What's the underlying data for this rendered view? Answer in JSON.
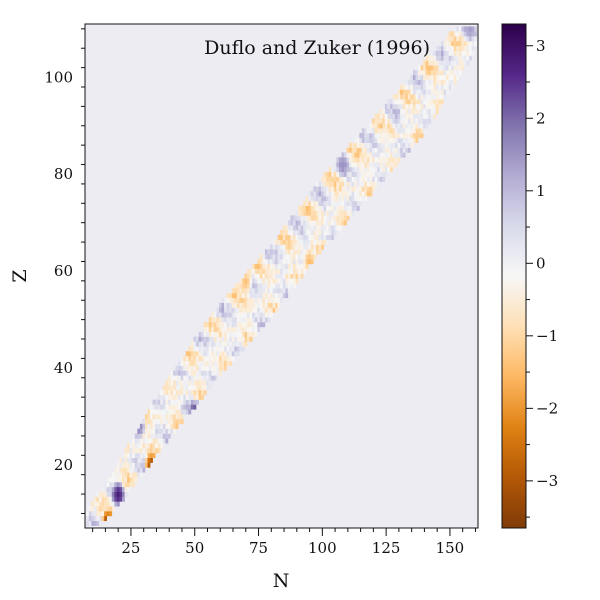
{
  "chart_data": {
    "type": "heatmap",
    "annotation": "Duflo and Zuker (1996)",
    "xlabel": "N",
    "ylabel": "Z",
    "xlim": [
      7,
      161
    ],
    "ylim": [
      7,
      111
    ],
    "xticks": [
      25,
      50,
      75,
      100,
      125,
      150
    ],
    "yticks": [
      20,
      40,
      60,
      80,
      100
    ],
    "colorbar": {
      "min": -3.65,
      "max": 3.3,
      "ticks": [
        3,
        2,
        1,
        0,
        -1,
        -2,
        -3
      ],
      "tick_labels": [
        "3",
        "2",
        "1",
        "0",
        "−1",
        "−2",
        "−3"
      ],
      "colormap": "PuOr",
      "colors_low_to_high": [
        "#7f3b08",
        "#b35806",
        "#e08214",
        "#fdb863",
        "#fee0b6",
        "#f7f7f7",
        "#d8daeb",
        "#b2abd2",
        "#8073ac",
        "#542788",
        "#2d004b"
      ]
    },
    "background_color": "#edecf2",
    "band": {
      "description": "nuclear chart residuals along the valley of stability",
      "centerline": [
        [
          8,
          8
        ],
        [
          20,
          16
        ],
        [
          40,
          32
        ],
        [
          60,
          46
        ],
        [
          80,
          58
        ],
        [
          100,
          72
        ],
        [
          120,
          84
        ],
        [
          140,
          96
        ],
        [
          160,
          110
        ]
      ],
      "typical_value_range": [
        -1.2,
        1.2
      ]
    },
    "hotspots": [
      {
        "N": 16,
        "Z": 8,
        "value": -3.5
      },
      {
        "N": 33,
        "Z": 20,
        "value": -3.2
      },
      {
        "N": 20,
        "Z": 14,
        "value": 2.8
      },
      {
        "N": 50,
        "Z": 31,
        "value": 2.4
      },
      {
        "N": 28,
        "Z": 28,
        "value": 1.8
      },
      {
        "N": 108,
        "Z": 82,
        "value": 1.6
      },
      {
        "N": 95,
        "Z": 62,
        "value": -1.4
      },
      {
        "N": 70,
        "Z": 58,
        "value": -1.3
      },
      {
        "N": 145,
        "Z": 90,
        "value": -1.8
      },
      {
        "N": 158,
        "Z": 110,
        "value": 1.5
      }
    ]
  }
}
